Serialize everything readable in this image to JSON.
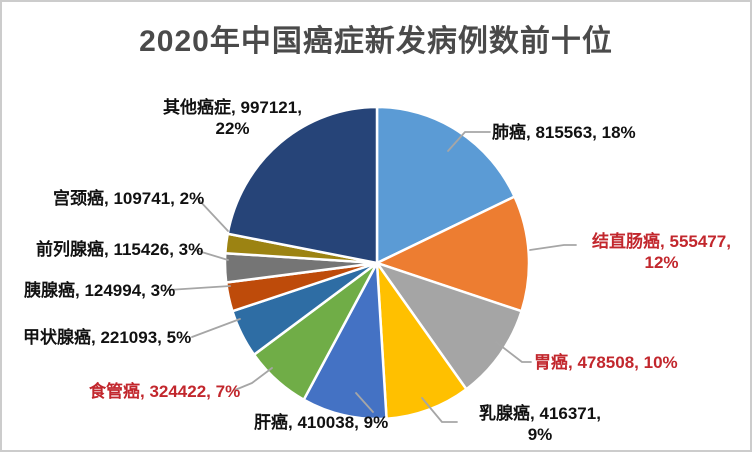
{
  "title": "2020年中国癌症新发病例数前十位",
  "colors": {
    "label_red": "#c2272d",
    "label_black": "#111111",
    "title_gray": "#4a4a4a",
    "leader_gray": "#a6a6a6",
    "slice_border": "#ffffff"
  },
  "chart_data": {
    "type": "pie",
    "title": "2020年中国癌症新发病例数前十位",
    "unit": "新发病例数 (cases)",
    "start_angle_deg": 0,
    "direction": "clockwise",
    "legend": "none",
    "slices": [
      {
        "id": "lung",
        "name": "肺癌",
        "value": 815563,
        "percent": 18,
        "color": "#5B9BD5",
        "label_color": "black",
        "label_lines": [
          "肺癌, 815563, 18%"
        ]
      },
      {
        "id": "colorectal",
        "name": "结直肠癌",
        "value": 555477,
        "percent": 12,
        "color": "#ED7D31",
        "label_color": "red",
        "label_lines": [
          "结直肠癌, 555477,",
          "12%"
        ]
      },
      {
        "id": "stomach",
        "name": "胃癌",
        "value": 478508,
        "percent": 10,
        "color": "#A5A5A5",
        "label_color": "red",
        "label_lines": [
          "胃癌, 478508, 10%"
        ]
      },
      {
        "id": "breast",
        "name": "乳腺癌",
        "value": 416371,
        "percent": 9,
        "color": "#FFC000",
        "label_color": "black",
        "label_lines": [
          "乳腺癌, 416371,",
          "9%"
        ]
      },
      {
        "id": "liver",
        "name": "肝癌",
        "value": 410038,
        "percent": 9,
        "color": "#4472C4",
        "label_color": "black",
        "label_lines": [
          "肝癌, 410038, 9%"
        ]
      },
      {
        "id": "esophageal",
        "name": "食管癌",
        "value": 324422,
        "percent": 7,
        "color": "#70AD47",
        "label_color": "red",
        "label_lines": [
          "食管癌, 324422, 7%"
        ]
      },
      {
        "id": "thyroid",
        "name": "甲状腺癌",
        "value": 221093,
        "percent": 5,
        "color": "#2E6DA4",
        "label_color": "black",
        "label_lines": [
          "甲状腺癌, 221093, 5%"
        ]
      },
      {
        "id": "pancreatic",
        "name": "胰腺癌",
        "value": 124994,
        "percent": 3,
        "color": "#BE4B0A",
        "label_color": "black",
        "label_lines": [
          "胰腺癌, 124994, 3%"
        ]
      },
      {
        "id": "prostate",
        "name": "前列腺癌",
        "value": 115426,
        "percent": 3,
        "color": "#757575",
        "label_color": "black",
        "label_lines": [
          "前列腺癌, 115426, 3%"
        ]
      },
      {
        "id": "cervical",
        "name": "宫颈癌",
        "value": 109741,
        "percent": 2,
        "color": "#9C8312",
        "label_color": "black",
        "label_lines": [
          "宫颈癌, 109741, 2%"
        ]
      },
      {
        "id": "other",
        "name": "其他癌症",
        "value": 997121,
        "percent": 22,
        "color": "#264478",
        "label_color": "black",
        "label_lines": [
          "其他癌症, 997121,",
          "22%"
        ]
      }
    ]
  }
}
